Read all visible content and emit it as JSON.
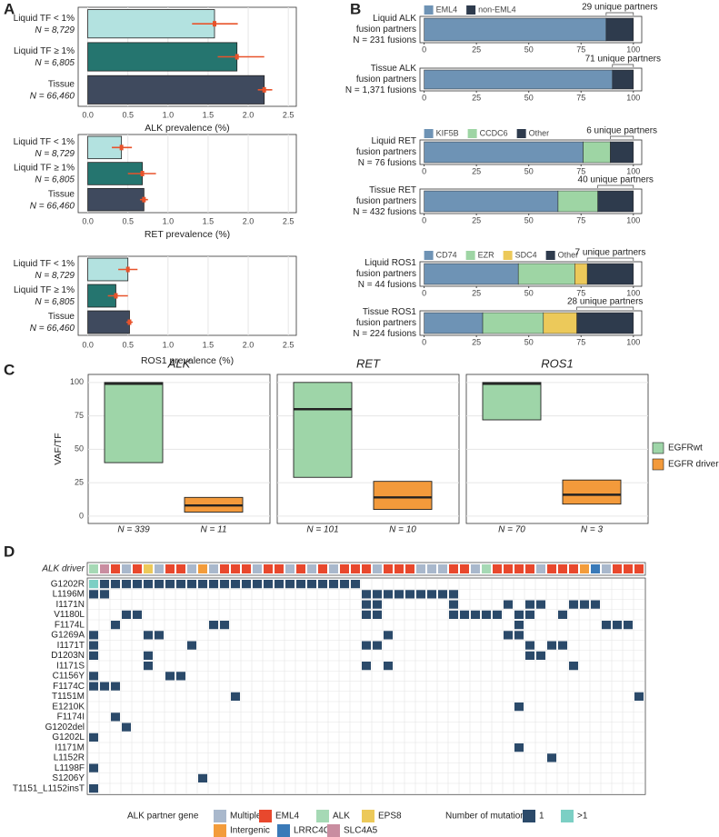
{
  "chart_data": [
    {
      "type": "hbar",
      "panel": "A",
      "categories": [
        "Liquid TF < 1%",
        "Liquid TF ≥ 1%",
        "Tissue"
      ],
      "sample_sizes": [
        "N = 8,729",
        "N = 6,805",
        "N = 66,460"
      ],
      "values": [
        1.58,
        1.86,
        2.2
      ],
      "ci_low": [
        1.3,
        1.62,
        2.12
      ],
      "ci_high": [
        1.87,
        2.2,
        2.3
      ],
      "colors": [
        "#b3e2e0",
        "#25756f",
        "#3f4a5e"
      ],
      "error_color": "#e8532b",
      "x_label": "ALK prevalence (%)",
      "xlim": [
        -0.12,
        2.6
      ],
      "xticks": [
        {
          "value": 0,
          "label": "0.0"
        },
        0.5,
        {
          "value": 1,
          "label": "1.0"
        },
        1.5,
        {
          "value": 2,
          "label": "2.0"
        },
        2.5
      ],
      "grid": true
    },
    {
      "type": "hbar",
      "categories": [
        "Liquid TF < 1%",
        "Liquid TF ≥ 1%",
        "Tissue"
      ],
      "sample_sizes": [
        "N = 8,729",
        "N = 6,805",
        "N = 66,460"
      ],
      "values": [
        0.42,
        0.68,
        0.7
      ],
      "ci_low": [
        0.3,
        0.5,
        0.65
      ],
      "ci_high": [
        0.55,
        0.85,
        0.75
      ],
      "colors": [
        "#b3e2e0",
        "#25756f",
        "#3f4a5e"
      ],
      "error_color": "#e8532b",
      "x_label": "RET prevalence (%)",
      "xlim": [
        -0.12,
        2.6
      ],
      "xticks": [
        {
          "value": 0,
          "label": "0.0"
        },
        0.5,
        {
          "value": 1,
          "label": "1.0"
        },
        1.5,
        {
          "value": 2,
          "label": "2.0"
        },
        2.5
      ],
      "grid": true
    },
    {
      "type": "hbar",
      "categories": [
        "Liquid TF < 1%",
        "Liquid TF ≥ 1%",
        "Tissue"
      ],
      "sample_sizes": [
        "N = 8,729",
        "N = 6,805",
        "N = 66,460"
      ],
      "values": [
        0.5,
        0.35,
        0.52
      ],
      "ci_low": [
        0.38,
        0.25,
        0.48
      ],
      "ci_high": [
        0.62,
        0.5,
        0.56
      ],
      "colors": [
        "#b3e2e0",
        "#25756f",
        "#3f4a5e"
      ],
      "error_color": "#e8532b",
      "x_label": "ROS1 prevalence (%)",
      "xlim": [
        -0.12,
        2.6
      ],
      "xticks": [
        {
          "value": 0,
          "label": "0.0"
        },
        0.5,
        {
          "value": 1,
          "label": "1.0"
        },
        1.5,
        {
          "value": 2,
          "label": "2.0"
        },
        2.5
      ],
      "grid": true
    },
    {
      "type": "stacked_bar",
      "panel": "B",
      "categories": [
        "Liquid ALK",
        "Tissue ALK"
      ],
      "category_notes": [
        [
          "fusion partners",
          "N = 231 fusions"
        ],
        [
          "fusion partners",
          "N = 1,371 fusions"
        ]
      ],
      "series": [
        {
          "name": "EML4",
          "color": "#6e93b5",
          "values": [
            87,
            90
          ]
        },
        {
          "name": "non-EML4",
          "color": "#2e3b4d",
          "values": [
            13,
            10
          ]
        }
      ],
      "annotations": [
        "29 unique partners",
        "71 unique partners"
      ],
      "xlim": [
        -2,
        104
      ],
      "xticks": [
        0,
        25,
        50,
        75,
        100
      ]
    },
    {
      "type": "stacked_bar",
      "categories": [
        "Liquid RET",
        "Tissue RET"
      ],
      "category_notes": [
        [
          "fusion partners",
          "N = 76 fusions"
        ],
        [
          "fusion partners",
          "N = 432 fusions"
        ]
      ],
      "series": [
        {
          "name": "KIF5B",
          "color": "#6e93b5",
          "values": [
            76,
            64
          ]
        },
        {
          "name": "CCDC6",
          "color": "#9ed5a4",
          "values": [
            13,
            19
          ]
        },
        {
          "name": "Other",
          "color": "#2e3b4d",
          "values": [
            11,
            17
          ]
        }
      ],
      "annotations": [
        "6 unique partners",
        "40 unique partners"
      ],
      "xlim": [
        -2,
        104
      ],
      "xticks": [
        0,
        25,
        50,
        75,
        100
      ]
    },
    {
      "type": "stacked_bar",
      "categories": [
        "Liquid ROS1",
        "Tissue ROS1"
      ],
      "category_notes": [
        [
          "fusion partners",
          "N = 44 fusions"
        ],
        [
          "fusion partners",
          "N = 224 fusions"
        ]
      ],
      "series": [
        {
          "name": "CD74",
          "color": "#6e93b5",
          "values": [
            45,
            28
          ]
        },
        {
          "name": "EZR",
          "color": "#9ed5a4",
          "values": [
            27,
            29
          ]
        },
        {
          "name": "SDC4",
          "color": "#ecc95a",
          "values": [
            6,
            16
          ]
        },
        {
          "name": "Other",
          "color": "#2e3b4d",
          "values": [
            22,
            27
          ]
        }
      ],
      "annotations": [
        "7 unique partners",
        "28 unique partners"
      ],
      "xlim": [
        -2,
        104
      ],
      "xticks": [
        0,
        25,
        50,
        75,
        100
      ]
    },
    {
      "type": "box",
      "panel": "C",
      "y_label": "VAF/TF",
      "groups": [
        "EGFRwt",
        "EGFR driver+"
      ],
      "colors": [
        "#9ed5a8",
        "#f39a3b"
      ],
      "facets": [
        {
          "title": "ALK",
          "n_labels": [
            "N = 339",
            "N = 11"
          ],
          "q1": [
            40,
            3
          ],
          "median": [
            99,
            8
          ],
          "q3": [
            100,
            14
          ]
        },
        {
          "title": "RET",
          "n_labels": [
            "N = 101",
            "N = 10"
          ],
          "q1": [
            29,
            5
          ],
          "median": [
            80,
            14
          ],
          "q3": [
            100,
            26
          ]
        },
        {
          "title": "ROS1",
          "n_labels": [
            "N = 70",
            "N = 3"
          ],
          "q1": [
            72,
            9
          ],
          "median": [
            99,
            16
          ],
          "q3": [
            100,
            27
          ]
        }
      ],
      "ylim": [
        -5.5,
        106
      ],
      "yticks": [
        0,
        25,
        50,
        75,
        100
      ],
      "grid": true
    },
    {
      "type": "oncoprint",
      "panel": "D",
      "header_label": "ALK driver",
      "partners": [
        "ALK",
        "SLC4A5",
        "EML4",
        "Multiple",
        "EML4",
        "EPS8",
        "Multiple",
        "EML4",
        "EML4",
        "Multiple",
        "Intergenic",
        "Multiple",
        "EML4",
        "EML4",
        "EML4",
        "Multiple",
        "EML4",
        "EML4",
        "Multiple",
        "EML4",
        "Multiple",
        "EML4",
        "Multiple",
        "EML4",
        "EML4",
        "EML4",
        "Multiple",
        "EML4",
        "EML4",
        "EML4",
        "Multiple",
        "Multiple",
        "Multiple",
        "EML4",
        "EML4",
        "Multiple",
        "ALK",
        "EML4",
        "EML4",
        "EML4",
        "EML4",
        "Multiple",
        "EML4",
        "EML4",
        "EML4",
        "Intergenic",
        "LRRC4C",
        "Multiple",
        "EML4",
        "EML4",
        "EML4"
      ],
      "rows": [
        {
          "name": "G1202R",
          "samples": [
            0,
            1,
            2,
            3,
            4,
            5,
            6,
            7,
            8,
            9,
            10,
            11,
            12,
            13,
            14,
            15,
            16,
            17,
            18,
            19,
            20,
            21,
            22,
            23,
            24
          ],
          "counts": [
            2,
            1,
            1,
            1,
            1,
            1,
            1,
            1,
            1,
            1,
            1,
            1,
            1,
            1,
            1,
            1,
            1,
            1,
            1,
            1,
            1,
            1,
            1,
            1,
            1
          ]
        },
        {
          "name": "L1196M",
          "samples": [
            0,
            1,
            25,
            26,
            27,
            28,
            29,
            30,
            31,
            32,
            33
          ],
          "counts": [
            1,
            1,
            1,
            1,
            1,
            1,
            1,
            1,
            1,
            1,
            1
          ]
        },
        {
          "name": "I1171N",
          "samples": [
            25,
            26,
            33,
            38,
            40,
            41,
            44,
            45,
            46
          ],
          "counts": [
            1,
            1,
            1,
            1,
            1,
            1,
            1,
            1,
            1
          ]
        },
        {
          "name": "V1180L",
          "samples": [
            3,
            4,
            25,
            26,
            33,
            34,
            35,
            36,
            37,
            39,
            40,
            43
          ],
          "counts": [
            1,
            1,
            1,
            1,
            1,
            1,
            1,
            1,
            1,
            1,
            1,
            1
          ]
        },
        {
          "name": "F1174L",
          "samples": [
            2,
            11,
            12,
            39,
            47,
            48,
            49
          ],
          "counts": [
            1,
            1,
            1,
            1,
            1,
            1,
            1
          ]
        },
        {
          "name": "G1269A",
          "samples": [
            0,
            5,
            6,
            27,
            38,
            39
          ],
          "counts": [
            1,
            1,
            1,
            1,
            1,
            1
          ]
        },
        {
          "name": "I1171T",
          "samples": [
            0,
            9,
            25,
            26,
            40,
            42,
            43
          ],
          "counts": [
            1,
            1,
            1,
            1,
            1,
            1,
            1
          ]
        },
        {
          "name": "D1203N",
          "samples": [
            0,
            5,
            40,
            41
          ],
          "counts": [
            1,
            1,
            1,
            1
          ]
        },
        {
          "name": "I1171S",
          "samples": [
            5,
            25,
            27,
            44
          ],
          "counts": [
            1,
            1,
            1,
            1
          ]
        },
        {
          "name": "C1156Y",
          "samples": [
            0,
            7,
            8
          ],
          "counts": [
            1,
            1,
            1
          ]
        },
        {
          "name": "F1174C",
          "samples": [
            0,
            1,
            2
          ],
          "counts": [
            1,
            1,
            1
          ]
        },
        {
          "name": "T1151M",
          "samples": [
            13,
            50
          ],
          "counts": [
            1,
            1
          ]
        },
        {
          "name": "E1210K",
          "samples": [
            39
          ],
          "counts": [
            1
          ]
        },
        {
          "name": "F1174I",
          "samples": [
            2
          ],
          "counts": [
            1
          ]
        },
        {
          "name": "G1202del",
          "samples": [
            3
          ],
          "counts": [
            1
          ]
        },
        {
          "name": "G1202L",
          "samples": [
            0
          ],
          "counts": [
            1
          ]
        },
        {
          "name": "I1171M",
          "samples": [
            39
          ],
          "counts": [
            1
          ]
        },
        {
          "name": "L1152R",
          "samples": [
            42
          ],
          "counts": [
            1
          ]
        },
        {
          "name": "L1198F",
          "samples": [
            0
          ],
          "counts": [
            1
          ]
        },
        {
          "name": "S1206Y",
          "samples": [
            10
          ],
          "counts": [
            1
          ]
        },
        {
          "name": "T1151_L1152insT",
          "samples": [
            0
          ],
          "counts": [
            1
          ]
        }
      ],
      "partner_legend_title": "ALK partner gene",
      "partner_colors": [
        {
          "name": "Multiple",
          "color": "#a9b8cc"
        },
        {
          "name": "EML4",
          "color": "#e8482d"
        },
        {
          "name": "ALK",
          "color": "#a6d9b5"
        },
        {
          "name": "EPS8",
          "color": "#ecc95a"
        },
        {
          "name": "Intergenic",
          "color": "#f39c3b"
        },
        {
          "name": "LRRC4C",
          "color": "#3a7ab8"
        },
        {
          "name": "SLC4A5",
          "color": "#c98da0"
        }
      ],
      "count_legend_title": "Number of mutations",
      "count_legend": [
        {
          "label": "1",
          "color": "#2b4a6a"
        },
        {
          "label": ">1",
          "color": "#7ccfc4"
        }
      ]
    }
  ]
}
